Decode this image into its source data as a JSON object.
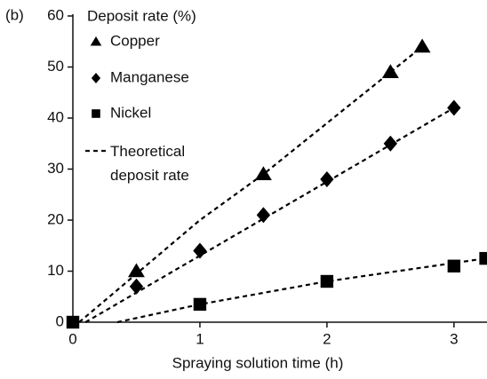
{
  "chart_data": {
    "type": "scatter",
    "panel_label": "(b)",
    "ylabel": "Deposit rate (%)",
    "xlabel": "Spraying solution time (h)",
    "xlim": [
      0,
      3.26
    ],
    "ylim": [
      0,
      60
    ],
    "xticks": [
      0,
      1,
      2,
      3
    ],
    "yticks": [
      0,
      10,
      20,
      30,
      40,
      50,
      60
    ],
    "grid": false,
    "legend": "upper left",
    "series": [
      {
        "name": "Copper",
        "color": "#000000",
        "marker": "triangle",
        "x": [
          0.5,
          1.5,
          2.5,
          2.75
        ],
        "values": [
          10,
          29,
          49,
          54
        ]
      },
      {
        "name": "Manganese",
        "color": "#000000",
        "marker": "diamond",
        "x": [
          0.5,
          1,
          1.5,
          2,
          2.5,
          3
        ],
        "values": [
          7,
          14,
          21,
          28,
          35,
          42
        ]
      },
      {
        "name": "Nickel",
        "color": "#000000",
        "marker": "square",
        "x": [
          0,
          1,
          2,
          3,
          3.25
        ],
        "values": [
          0,
          3.5,
          8,
          11,
          12.5
        ]
      }
    ],
    "theoretical": {
      "name": "Theoretical deposit rate",
      "color": "#000000",
      "lines": [
        {
          "x": [
            0.05,
            1,
            1.5,
            2.75
          ],
          "values": [
            0,
            20,
            29,
            54
          ]
        },
        {
          "x": [
            0.1,
            3
          ],
          "values": [
            0,
            42
          ]
        },
        {
          "x": [
            0.35,
            1,
            2,
            3.25
          ],
          "values": [
            0,
            3.5,
            8,
            12.5
          ]
        }
      ]
    }
  }
}
